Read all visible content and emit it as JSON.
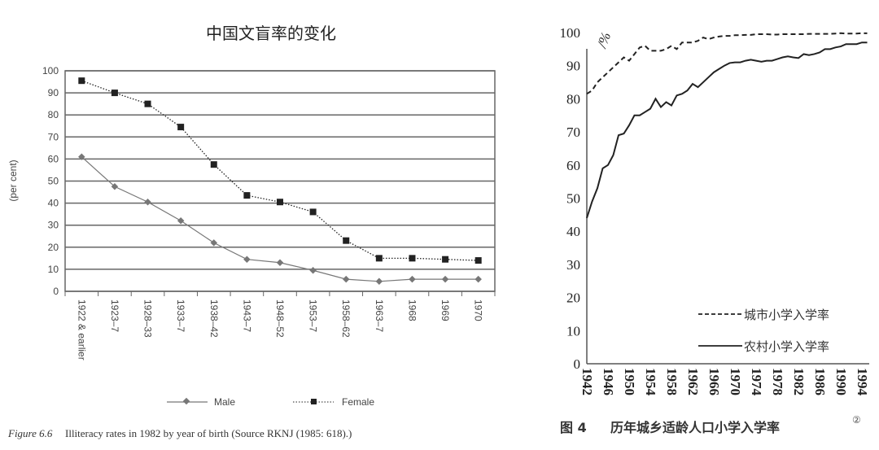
{
  "chart_data": [
    {
      "type": "line",
      "title": "中国文盲率的变化",
      "ylabel": "(per cent)",
      "xlabel": "",
      "ylim": [
        0,
        100
      ],
      "yticks": [
        0,
        10,
        20,
        30,
        40,
        50,
        60,
        70,
        80,
        90,
        100
      ],
      "grid": true,
      "legend_placement": "bottom",
      "categories": [
        "1922 & earlier",
        "1923–7",
        "1928–33",
        "1933–7",
        "1938–42",
        "1943–7",
        "1948–52",
        "1953–7",
        "1958–62",
        "1963–7",
        "1968",
        "1969",
        "1970"
      ],
      "series": [
        {
          "name": "Male",
          "style": "solid-diamond",
          "color": "#777777",
          "values": [
            61,
            47.5,
            40.5,
            32,
            22,
            14.5,
            13,
            9.5,
            5.5,
            4.5,
            5.5,
            5.5,
            5.5
          ]
        },
        {
          "name": "Female",
          "style": "dotted-square",
          "color": "#222222",
          "values": [
            95.5,
            90,
            85,
            74.5,
            57.5,
            43.5,
            40.5,
            36,
            23,
            15,
            15,
            14.5,
            14
          ]
        }
      ],
      "caption_label": "Figure 6.6",
      "caption": "Illiteracy rates in 1982 by year of birth (Source RKNJ (1985: 618).)"
    },
    {
      "type": "line",
      "title": "",
      "ylabel": "/%",
      "ylim": [
        0,
        100
      ],
      "yticks": [
        0,
        10,
        20,
        30,
        40,
        50,
        60,
        70,
        80,
        90,
        100
      ],
      "xlim": [
        1942,
        1995
      ],
      "xticks": [
        1942,
        1946,
        1950,
        1954,
        1958,
        1962,
        1966,
        1970,
        1974,
        1978,
        1982,
        1986,
        1990,
        1994
      ],
      "grid": false,
      "legend_placement": "bottom-right",
      "x": [
        1942,
        1943,
        1944,
        1945,
        1946,
        1947,
        1948,
        1949,
        1950,
        1951,
        1952,
        1953,
        1954,
        1955,
        1956,
        1957,
        1958,
        1959,
        1960,
        1961,
        1962,
        1963,
        1964,
        1965,
        1966,
        1967,
        1968,
        1969,
        1970,
        1971,
        1972,
        1973,
        1974,
        1975,
        1976,
        1977,
        1978,
        1979,
        1980,
        1981,
        1982,
        1983,
        1984,
        1985,
        1986,
        1987,
        1988,
        1989,
        1990,
        1991,
        1992,
        1993,
        1994,
        1995
      ],
      "series": [
        {
          "name": "城市小学入学率",
          "style": "dashed",
          "color": "#222222",
          "values": [
            81.5,
            82.5,
            85,
            86.5,
            88,
            89.5,
            91,
            92.5,
            91.5,
            93.5,
            95.5,
            96,
            94.5,
            94.5,
            94.5,
            95,
            96,
            95,
            97,
            97,
            97,
            97.5,
            98.5,
            98,
            98.5,
            98.8,
            99,
            99,
            99.2,
            99.2,
            99.3,
            99.3,
            99.5,
            99.5,
            99.5,
            99.4,
            99.4,
            99.5,
            99.5,
            99.5,
            99.5,
            99.5,
            99.6,
            99.6,
            99.6,
            99.6,
            99.6,
            99.7,
            99.8,
            99.7,
            99.7,
            99.7,
            99.8,
            99.8
          ]
        },
        {
          "name": "农村小学入学率",
          "style": "solid",
          "color": "#222222",
          "values": [
            44,
            49,
            53,
            59,
            60,
            63,
            69,
            69.5,
            72,
            75,
            75,
            76,
            77,
            80,
            77.5,
            79,
            78,
            81,
            81.5,
            82.5,
            84.5,
            83.5,
            85,
            86.5,
            88,
            89,
            90,
            90.8,
            91,
            91,
            91.5,
            91.8,
            91.5,
            91.2,
            91.5,
            91.5,
            92,
            92.5,
            92.8,
            92.5,
            92.3,
            93.5,
            93.2,
            93.5,
            94,
            95,
            95,
            95.5,
            95.8,
            96.5,
            96.5,
            96.5,
            97,
            97
          ]
        }
      ],
      "caption_label": "图 4",
      "caption": "历年城乡适龄人口小学入学率",
      "caption_note": "②"
    }
  ]
}
